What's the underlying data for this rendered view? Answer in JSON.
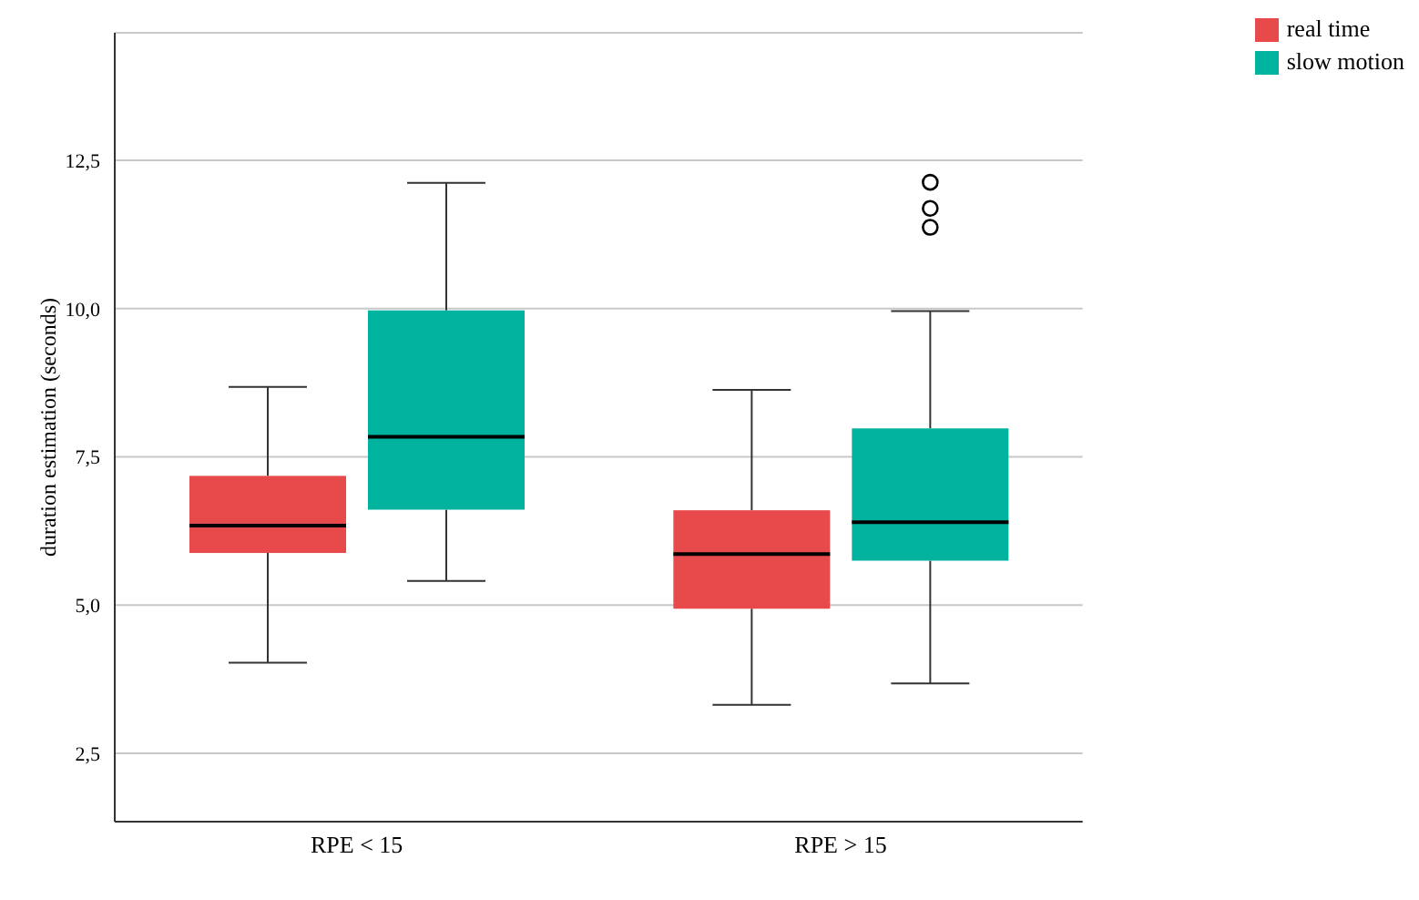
{
  "chart_data": {
    "type": "box",
    "ylabel": "duration estimation (seconds)",
    "categories": [
      "RPE < 15",
      "RPE > 15"
    ],
    "series": [
      {
        "name": "real time",
        "color": "#e84a4b",
        "boxes": [
          {
            "low": 4.03,
            "q1": 5.88,
            "median": 6.34,
            "q3": 7.18,
            "high": 8.68
          },
          {
            "low": 3.32,
            "q1": 4.94,
            "median": 5.86,
            "q3": 6.6,
            "high": 8.63
          }
        ]
      },
      {
        "name": "slow motion",
        "color": "#00b39f",
        "boxes": [
          {
            "low": 5.41,
            "q1": 6.61,
            "median": 7.84,
            "q3": 9.97,
            "high": 12.12
          },
          {
            "low": 3.68,
            "q1": 5.75,
            "median": 6.4,
            "q3": 7.98,
            "high": 9.96,
            "outliers": [
              12.13,
              11.69,
              11.37
            ]
          }
        ]
      }
    ],
    "ylim": [
      1.35,
      14.65
    ],
    "yticks": [
      {
        "value": 2.5,
        "label": "2,5"
      },
      {
        "value": 5,
        "label": "5,0"
      },
      {
        "value": 7.5,
        "label": "7,5"
      },
      {
        "value": 10,
        "label": "10,0"
      },
      {
        "value": 12.5,
        "label": "12,5"
      }
    ],
    "grid": "y",
    "legend": "top right"
  }
}
